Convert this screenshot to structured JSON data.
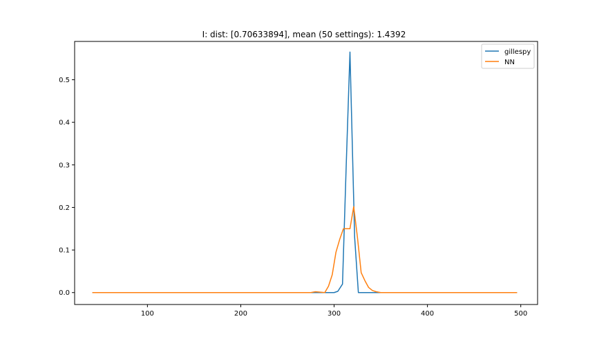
{
  "chart_data": {
    "type": "line",
    "title": "I: dist: [0.70633894], mean (50 settings): 1.4392",
    "xlabel": "",
    "ylabel": "",
    "xlim": [
      22,
      518
    ],
    "ylim": [
      -0.028,
      0.59
    ],
    "xticks": [
      100,
      200,
      300,
      400,
      500
    ],
    "yticks": [
      0.0,
      0.1,
      0.2,
      0.3,
      0.4,
      0.5
    ],
    "ytick_labels": [
      "0.0",
      "0.1",
      "0.2",
      "0.3",
      "0.4",
      "0.5"
    ],
    "grid": false,
    "legend_position": "top-right",
    "series": [
      {
        "name": "gillespy",
        "color": "#1f77b4",
        "x": [
          41,
          100,
          150,
          200,
          250,
          280,
          290,
          296,
          300,
          304,
          309,
          313,
          317,
          322,
          326,
          330,
          340,
          360,
          400,
          450,
          496
        ],
        "y": [
          0,
          0,
          0,
          0,
          0,
          0,
          0,
          0,
          0,
          0.003,
          0.02,
          0.3,
          0.565,
          0.13,
          0.0,
          0.0,
          0,
          0,
          0,
          0,
          0
        ]
      },
      {
        "name": "NN",
        "color": "#ff7f0e",
        "x": [
          41,
          100,
          150,
          200,
          250,
          275,
          280,
          285,
          290,
          294,
          298,
          302,
          306,
          310,
          313,
          317,
          321,
          325,
          329,
          333,
          337,
          341,
          345,
          350,
          360,
          400,
          450,
          496
        ],
        "y": [
          0,
          0,
          0,
          0,
          0,
          0,
          0.002,
          0.001,
          0,
          0.015,
          0.042,
          0.095,
          0.125,
          0.15,
          0.15,
          0.15,
          0.202,
          0.13,
          0.047,
          0.028,
          0.012,
          0.005,
          0.002,
          0,
          0,
          0,
          0,
          0
        ]
      }
    ]
  }
}
